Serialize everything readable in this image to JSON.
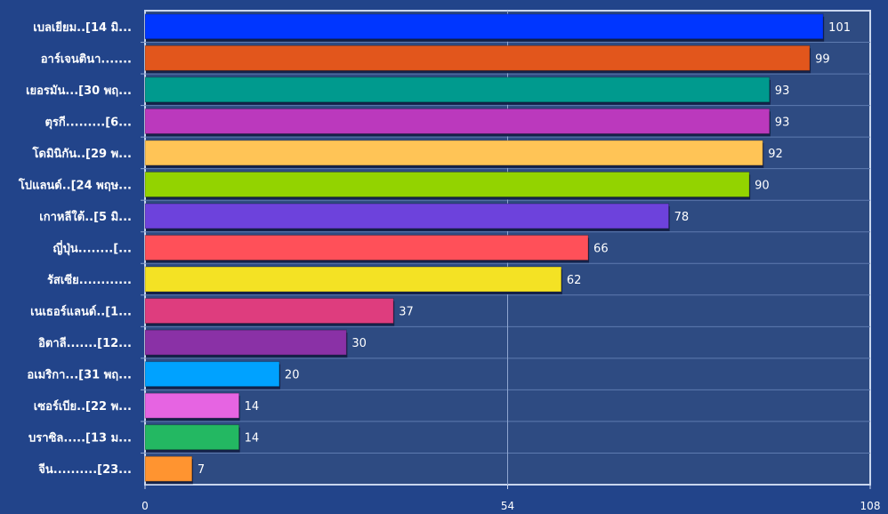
{
  "chart_data": {
    "type": "bar",
    "orientation": "horizontal",
    "categories": [
      "เบลเยียม..[14 มิ...",
      "อาร์เจนตินา.......",
      "เยอรมัน...[30 พฤ...",
      "ตุรกี.........[6...",
      "โดมินิกัน..[29 พ...",
      "โปแลนด์..[24 พฤษ...",
      "เกาหลีใต้..[5 มิ...",
      "ญี่ปุ่น........[...",
      "รัสเซีย............",
      "เนเธอร์แลนด์..[1...",
      "อิตาลี.......[12...",
      "อเมริกา...[31 พฤ...",
      "เซอร์เบีย..[22 พ...",
      "บราซิล.....[13 ม...",
      "จีน..........[23..."
    ],
    "values": [
      101,
      99,
      93,
      93,
      92,
      90,
      78,
      66,
      62,
      37,
      30,
      20,
      14,
      14,
      7
    ],
    "colors": [
      "#0036ff",
      "#e2561c",
      "#009a8e",
      "#bb39bd",
      "#ffc456",
      "#93d300",
      "#6d42dc",
      "#ff5059",
      "#f4e224",
      "#de3d7e",
      "#8a31a6",
      "#00a2ff",
      "#e664e2",
      "#23b862",
      "#ff9430"
    ],
    "xlim": [
      0,
      108
    ],
    "xticks": [
      "0",
      "54",
      "108"
    ],
    "grid": true,
    "title": "",
    "xlabel": "",
    "ylabel": ""
  }
}
